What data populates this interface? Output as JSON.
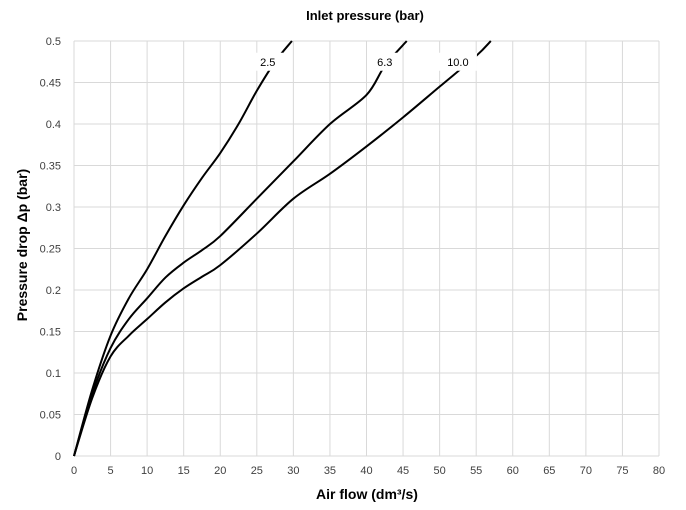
{
  "chart_data": {
    "type": "line",
    "title": "Inlet pressure (bar)",
    "xlabel": "Air flow (dm³/s)",
    "ylabel": "Pressure drop Δp (bar)",
    "xlim": [
      0,
      80
    ],
    "ylim": [
      0,
      0.5
    ],
    "x_ticks": [
      "0",
      "5",
      "10",
      "15",
      "20",
      "25",
      "30",
      "35",
      "40",
      "45",
      "50",
      "55",
      "60",
      "65",
      "70",
      "75",
      "80"
    ],
    "y_ticks": [
      "0",
      "0.05",
      "0.1",
      "0.15",
      "0.2",
      "0.25",
      "0.3",
      "0.35",
      "0.4",
      "0.45",
      "0.5"
    ],
    "grid": true,
    "line_color": "#000000",
    "grid_color": "#d9d9d9",
    "series": [
      {
        "name": "2.5",
        "label_at": [
          26.5,
          0.475
        ],
        "points": [
          [
            0,
            0
          ],
          [
            2.5,
            0.08
          ],
          [
            5,
            0.145
          ],
          [
            7.5,
            0.19
          ],
          [
            10,
            0.225
          ],
          [
            12.5,
            0.265
          ],
          [
            15,
            0.302
          ],
          [
            17.5,
            0.335
          ],
          [
            20,
            0.365
          ],
          [
            22.5,
            0.4
          ],
          [
            25,
            0.44
          ],
          [
            27.5,
            0.475
          ],
          [
            29.8,
            0.5
          ]
        ]
      },
      {
        "name": "6.3",
        "label_at": [
          42.5,
          0.475
        ],
        "points": [
          [
            0,
            0
          ],
          [
            2.5,
            0.075
          ],
          [
            5,
            0.13
          ],
          [
            7.5,
            0.165
          ],
          [
            10,
            0.19
          ],
          [
            12.5,
            0.215
          ],
          [
            15,
            0.233
          ],
          [
            17.5,
            0.248
          ],
          [
            20,
            0.265
          ],
          [
            25,
            0.31
          ],
          [
            30,
            0.355
          ],
          [
            35,
            0.4
          ],
          [
            40,
            0.435
          ],
          [
            42.5,
            0.47
          ],
          [
            45.5,
            0.5
          ]
        ]
      },
      {
        "name": "10.0",
        "label_at": [
          52.5,
          0.475
        ],
        "points": [
          [
            0,
            0
          ],
          [
            2.5,
            0.07
          ],
          [
            5,
            0.12
          ],
          [
            7.5,
            0.145
          ],
          [
            10,
            0.165
          ],
          [
            12.5,
            0.185
          ],
          [
            15,
            0.202
          ],
          [
            17.5,
            0.216
          ],
          [
            20,
            0.23
          ],
          [
            25,
            0.268
          ],
          [
            30,
            0.31
          ],
          [
            35,
            0.34
          ],
          [
            40,
            0.373
          ],
          [
            45,
            0.408
          ],
          [
            50,
            0.445
          ],
          [
            55,
            0.482
          ],
          [
            57,
            0.5
          ]
        ]
      }
    ]
  }
}
